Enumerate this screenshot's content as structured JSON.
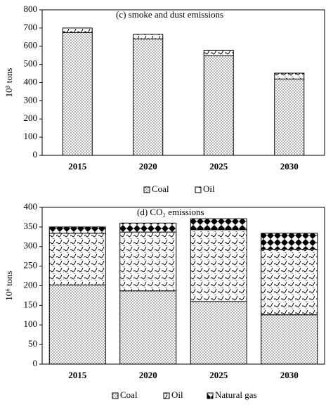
{
  "chart_data": [
    {
      "type": "bar",
      "stacked": true,
      "title": "(c) smoke and dust emissions",
      "y_label": "10³ tons",
      "categories": [
        "2015",
        "2020",
        "2025",
        "2030"
      ],
      "series": [
        {
          "name": "Coal",
          "color": "#000000",
          "pattern": "dots",
          "values": [
            675,
            640,
            548,
            420
          ]
        },
        {
          "name": "Oil",
          "color": "#000000",
          "pattern": "waves",
          "values": [
            25,
            26,
            30,
            32
          ]
        }
      ],
      "ylim": [
        0,
        800
      ],
      "yticks": [
        0,
        100,
        200,
        300,
        400,
        500,
        600,
        700,
        800
      ],
      "grid": false,
      "legend": "bottom"
    },
    {
      "type": "bar",
      "stacked": true,
      "title": "(d) CO₂ emissions",
      "y_label": "10⁶ tons",
      "categories": [
        "2015",
        "2020",
        "2025",
        "2030"
      ],
      "series": [
        {
          "name": "Coal",
          "color": "#000000",
          "pattern": "dots",
          "values": [
            202,
            187,
            160,
            126
          ]
        },
        {
          "name": "Oil",
          "color": "#000000",
          "pattern": "waves",
          "values": [
            132,
            150,
            183,
            167
          ]
        },
        {
          "name": "Natural gas",
          "color": "#000000",
          "pattern": "diamonds",
          "values": [
            16,
            23,
            28,
            41
          ]
        }
      ],
      "ylim": [
        0,
        400
      ],
      "yticks": [
        0,
        50,
        100,
        150,
        200,
        250,
        300,
        350,
        400
      ],
      "grid": false,
      "legend": "bottom"
    }
  ]
}
